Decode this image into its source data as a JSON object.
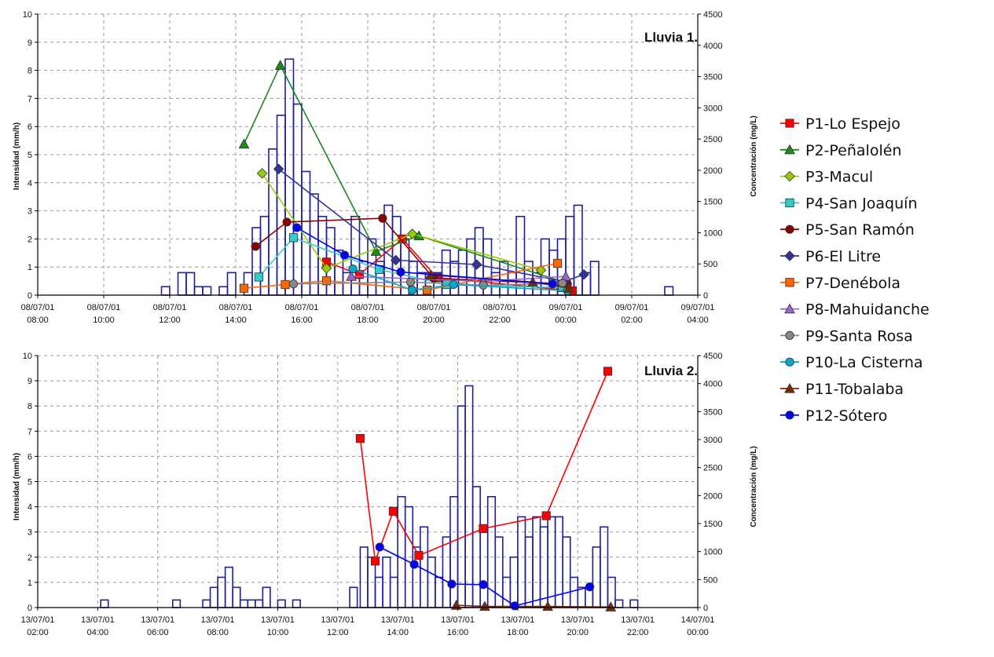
{
  "legend": [
    {
      "name": "P1-Lo Espejo",
      "color": "#ff0000",
      "marker": "square"
    },
    {
      "name": "P2-Peñalolén",
      "color": "#1a8a1a",
      "marker": "triangle"
    },
    {
      "name": "P3-Macul",
      "color": "#99cc00",
      "marker": "diamond"
    },
    {
      "name": "P4-San Joaquín",
      "color": "#33cccc",
      "marker": "square"
    },
    {
      "name": "P5-San Ramón",
      "color": "#8b0000",
      "marker": "circle"
    },
    {
      "name": "P6-El Litre",
      "color": "#333399",
      "marker": "diamond"
    },
    {
      "name": "P7-Denébola",
      "color": "#ff6600",
      "marker": "square"
    },
    {
      "name": "P8-Mahuidanche",
      "color": "#9966cc",
      "marker": "triangle"
    },
    {
      "name": "P9-Santa Rosa",
      "color": "#888888",
      "marker": "circle"
    },
    {
      "name": "P10-La Cisterna",
      "color": "#00aacc",
      "marker": "circle"
    },
    {
      "name": "P11-Tobalaba",
      "color": "#7a2a00",
      "marker": "triangle"
    },
    {
      "name": "P12-Sótero",
      "color": "#0000ff",
      "marker": "circle"
    }
  ],
  "chart_data": [
    {
      "type": "bar",
      "title": "Lluvia 1.",
      "ylabel": "Intensidad (mm/h)",
      "y2label": "Concentración (mg/L)",
      "ylim": [
        0,
        10
      ],
      "y2lim": [
        0,
        4500
      ],
      "yticks": [
        "0",
        "1",
        "2",
        "3",
        "4",
        "5",
        "6",
        "7",
        "8",
        "9",
        "10"
      ],
      "y2ticks": [
        "0",
        "500",
        "1000",
        "1500",
        "2000",
        "2500",
        "3000",
        "3500",
        "4000",
        "4500"
      ],
      "xlim": [
        8,
        28
      ],
      "xtick_values": [
        8,
        10,
        12,
        14,
        16,
        18,
        20,
        22,
        24,
        26,
        28
      ],
      "xtick_labels": [
        [
          "08/07/01",
          "08:00"
        ],
        [
          "08/07/01",
          "10:00"
        ],
        [
          "08/07/01",
          "12:00"
        ],
        [
          "08/07/01",
          "14:00"
        ],
        [
          "08/07/01",
          "16:00"
        ],
        [
          "08/07/01",
          "18:00"
        ],
        [
          "08/07/01",
          "20:00"
        ],
        [
          "08/07/01",
          "22:00"
        ],
        [
          "09/07/01",
          "00:00"
        ],
        [
          "09/07/01",
          "02:00"
        ],
        [
          "09/07/01",
          "04:00"
        ]
      ],
      "grid": true,
      "bar_width_hours": 0.25,
      "bars": [
        [
          11.75,
          0.3
        ],
        [
          12.25,
          0.8
        ],
        [
          12.5,
          0.8
        ],
        [
          12.75,
          0.3
        ],
        [
          13.0,
          0.3
        ],
        [
          13.5,
          0.3
        ],
        [
          13.75,
          0.8
        ],
        [
          14.25,
          0.8
        ],
        [
          14.5,
          2.4
        ],
        [
          14.75,
          2.8
        ],
        [
          15.0,
          5.2
        ],
        [
          15.25,
          6.4
        ],
        [
          15.5,
          8.4
        ],
        [
          15.75,
          6.8
        ],
        [
          16.0,
          4.4
        ],
        [
          16.25,
          3.6
        ],
        [
          16.5,
          2.8
        ],
        [
          16.75,
          2.4
        ],
        [
          17.0,
          1.6
        ],
        [
          17.25,
          0.8
        ],
        [
          17.5,
          2.8
        ],
        [
          17.75,
          1.2
        ],
        [
          18.0,
          2.0
        ],
        [
          18.25,
          1.2
        ],
        [
          18.5,
          3.2
        ],
        [
          18.75,
          2.8
        ],
        [
          19.0,
          2.0
        ],
        [
          19.25,
          1.2
        ],
        [
          19.5,
          0.8
        ],
        [
          19.75,
          0.8
        ],
        [
          20.0,
          0.8
        ],
        [
          20.25,
          1.6
        ],
        [
          20.5,
          1.2
        ],
        [
          20.75,
          1.6
        ],
        [
          21.0,
          2.0
        ],
        [
          21.25,
          2.4
        ],
        [
          21.5,
          2.0
        ],
        [
          21.75,
          0.8
        ],
        [
          22.0,
          1.2
        ],
        [
          22.25,
          0.8
        ],
        [
          22.5,
          2.8
        ],
        [
          22.75,
          1.2
        ],
        [
          23.0,
          0.8
        ],
        [
          23.25,
          2.0
        ],
        [
          23.5,
          1.6
        ],
        [
          23.75,
          2.0
        ],
        [
          24.0,
          2.8
        ],
        [
          24.25,
          3.2
        ],
        [
          24.5,
          0.8
        ],
        [
          24.75,
          1.2
        ],
        [
          27.0,
          0.3
        ]
      ],
      "series": [
        {
          "name": "P1-Lo Espejo",
          "points": [
            [
              16.75,
              530
            ],
            [
              17.75,
              330
            ],
            [
              19.05,
              900
            ],
            [
              20.1,
              280
            ],
            [
              24.2,
              70
            ]
          ]
        },
        {
          "name": "P2-Peñalolén",
          "points": [
            [
              14.25,
              2420
            ],
            [
              15.35,
              3680
            ],
            [
              18.25,
              700
            ],
            [
              19.55,
              950
            ],
            [
              24.0,
              200
            ]
          ]
        },
        {
          "name": "P3-Macul",
          "points": [
            [
              14.8,
              1950
            ],
            [
              16.75,
              430
            ],
            [
              19.35,
              980
            ],
            [
              23.25,
              400
            ]
          ]
        },
        {
          "name": "P4-San Joaquín",
          "points": [
            [
              14.7,
              290
            ],
            [
              15.75,
              920
            ],
            [
              18.35,
              410
            ],
            [
              20.4,
              170
            ],
            [
              23.9,
              120
            ]
          ]
        },
        {
          "name": "P5-San Ramón",
          "points": [
            [
              14.6,
              780
            ],
            [
              15.55,
              1170
            ],
            [
              18.45,
              1230
            ],
            [
              20.0,
              270
            ],
            [
              24.05,
              180
            ]
          ]
        },
        {
          "name": "P6-El Litre",
          "points": [
            [
              15.3,
              2020
            ],
            [
              18.85,
              560
            ],
            [
              21.3,
              490
            ],
            [
              23.95,
              220
            ],
            [
              24.55,
              330
            ]
          ]
        },
        {
          "name": "P7-Denébola",
          "points": [
            [
              14.25,
              110
            ],
            [
              15.5,
              170
            ],
            [
              16.75,
              230
            ],
            [
              19.8,
              80
            ],
            [
              23.75,
              510
            ]
          ]
        },
        {
          "name": "P8-Mahuidanche",
          "points": [
            [
              17.5,
              300
            ],
            [
              21.5,
              220
            ],
            [
              24.0,
              300
            ]
          ]
        },
        {
          "name": "P9-Santa Rosa",
          "points": [
            [
              15.75,
              180
            ],
            [
              19.3,
              210
            ],
            [
              21.5,
              160
            ],
            [
              23.9,
              190
            ]
          ]
        },
        {
          "name": "P10-La Cisterna",
          "points": [
            [
              17.55,
              420
            ],
            [
              19.35,
              80
            ],
            [
              20.6,
              170
            ],
            [
              24.05,
              70
            ]
          ]
        },
        {
          "name": "P11-Tobalaba",
          "points": [
            [
              19.9,
              320
            ],
            [
              23.0,
              210
            ],
            [
              24.1,
              110
            ]
          ]
        },
        {
          "name": "P12-Sótero",
          "points": [
            [
              15.85,
              1080
            ],
            [
              17.3,
              640
            ],
            [
              19.0,
              370
            ],
            [
              23.6,
              180
            ]
          ]
        }
      ]
    },
    {
      "type": "bar",
      "title": "Lluvia 2.",
      "ylabel": "Intensidad (mm/h)",
      "y2label": "Concentración (mg/L)",
      "ylim": [
        0,
        10
      ],
      "y2lim": [
        0,
        4500
      ],
      "yticks": [
        "0",
        "1",
        "2",
        "3",
        "4",
        "5",
        "6",
        "7",
        "8",
        "9",
        "10"
      ],
      "y2ticks": [
        "0",
        "500",
        "1000",
        "1500",
        "2000",
        "2500",
        "3000",
        "3500",
        "4000",
        "4500"
      ],
      "xlim": [
        2,
        24
      ],
      "xtick_values": [
        2,
        4,
        6,
        8,
        10,
        12,
        14,
        16,
        18,
        20,
        22,
        24
      ],
      "xtick_labels": [
        [
          "13/07/01",
          "02:00"
        ],
        [
          "13/07/01",
          "04:00"
        ],
        [
          "13/07/01",
          "06:00"
        ],
        [
          "13/07/01",
          "08:00"
        ],
        [
          "13/07/01",
          "10:00"
        ],
        [
          "13/07/01",
          "12:00"
        ],
        [
          "13/07/01",
          "14:00"
        ],
        [
          "13/07/01",
          "16:00"
        ],
        [
          "13/07/01",
          "18:00"
        ],
        [
          "13/07/01",
          "20:00"
        ],
        [
          "13/07/01",
          "22:00"
        ],
        [
          "14/07/01",
          "00:00"
        ]
      ],
      "grid": true,
      "bar_width_hours": 0.25,
      "bars": [
        [
          4.1,
          0.3
        ],
        [
          6.5,
          0.3
        ],
        [
          7.5,
          0.3
        ],
        [
          7.75,
          0.8
        ],
        [
          8.0,
          1.2
        ],
        [
          8.25,
          1.6
        ],
        [
          8.5,
          0.8
        ],
        [
          8.75,
          0.3
        ],
        [
          9.0,
          0.3
        ],
        [
          9.25,
          0.3
        ],
        [
          9.5,
          0.8
        ],
        [
          10.0,
          0.3
        ],
        [
          10.5,
          0.3
        ],
        [
          12.4,
          0.8
        ],
        [
          12.75,
          2.4
        ],
        [
          13.0,
          2.0
        ],
        [
          13.25,
          1.2
        ],
        [
          13.5,
          2.0
        ],
        [
          13.75,
          1.2
        ],
        [
          14.0,
          4.4
        ],
        [
          14.25,
          4.0
        ],
        [
          14.5,
          2.4
        ],
        [
          14.75,
          3.2
        ],
        [
          15.0,
          2.0
        ],
        [
          15.25,
          1.2
        ],
        [
          15.5,
          2.8
        ],
        [
          15.75,
          4.4
        ],
        [
          16.0,
          8.0
        ],
        [
          16.25,
          8.8
        ],
        [
          16.5,
          4.8
        ],
        [
          16.75,
          3.2
        ],
        [
          17.0,
          4.4
        ],
        [
          17.25,
          2.8
        ],
        [
          17.5,
          1.2
        ],
        [
          17.75,
          2.0
        ],
        [
          18.0,
          3.6
        ],
        [
          18.25,
          2.8
        ],
        [
          18.5,
          3.6
        ],
        [
          18.75,
          3.2
        ],
        [
          19.0,
          3.6
        ],
        [
          19.25,
          3.6
        ],
        [
          19.5,
          2.8
        ],
        [
          19.75,
          1.2
        ],
        [
          20.0,
          0.8
        ],
        [
          20.25,
          0.8
        ],
        [
          20.5,
          2.4
        ],
        [
          20.75,
          3.2
        ],
        [
          21.0,
          1.2
        ],
        [
          21.25,
          0.3
        ],
        [
          21.75,
          0.3
        ]
      ],
      "series": [
        {
          "name": "P1-Lo Espejo",
          "points": [
            [
              12.75,
              3020
            ],
            [
              13.25,
              830
            ],
            [
              13.85,
              1720
            ],
            [
              14.7,
              930
            ],
            [
              16.85,
              1410
            ],
            [
              18.95,
              1640
            ],
            [
              21.0,
              4220
            ]
          ]
        },
        {
          "name": "P11-Tobalaba",
          "points": [
            [
              15.95,
              40
            ],
            [
              16.9,
              20
            ],
            [
              19.0,
              20
            ],
            [
              21.1,
              10
            ]
          ]
        },
        {
          "name": "P12-Sótero",
          "points": [
            [
              13.4,
              1080
            ],
            [
              14.55,
              770
            ],
            [
              15.8,
              420
            ],
            [
              16.85,
              410
            ],
            [
              17.9,
              30
            ],
            [
              20.4,
              370
            ]
          ]
        }
      ]
    }
  ]
}
